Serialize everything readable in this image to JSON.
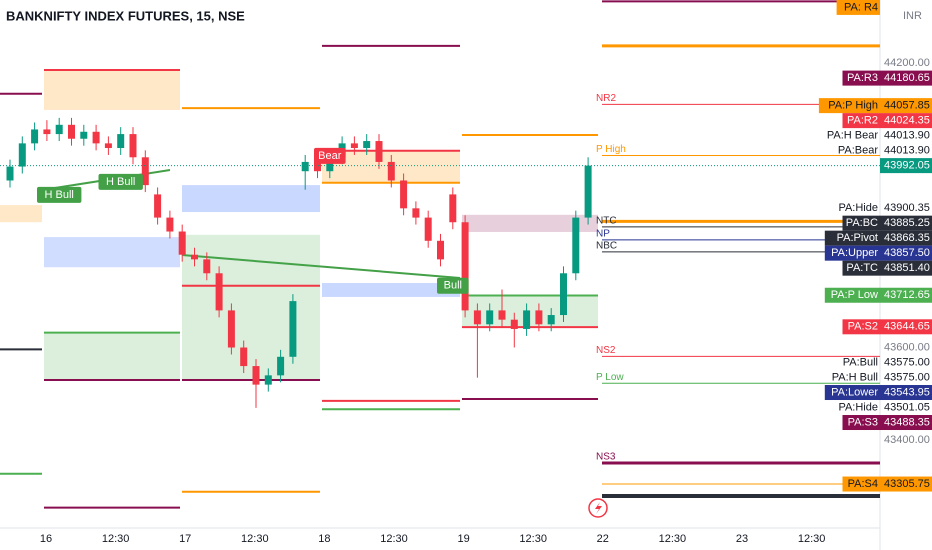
{
  "chart_data": {
    "type": "candlestick",
    "title": "BANKNIFTY INDEX FUTURES, 15, NSE",
    "currency": "INR",
    "ylim": [
      43211,
      44349
    ],
    "categories": [
      "16",
      "12:30",
      "17",
      "12:30",
      "18",
      "12:30",
      "19",
      "12:30",
      "22",
      "12:30",
      "23",
      "12:30"
    ],
    "up_color": "#089981",
    "down_color": "#f23645",
    "candles": [
      [
        43960,
        44005,
        43945,
        43990
      ],
      [
        43990,
        44055,
        43975,
        44040
      ],
      [
        44040,
        44085,
        44025,
        44070
      ],
      [
        44070,
        44090,
        44045,
        44060
      ],
      [
        44060,
        44095,
        44045,
        44080
      ],
      [
        44080,
        44095,
        44035,
        44050
      ],
      [
        44050,
        44080,
        44035,
        44065
      ],
      [
        44065,
        44080,
        44025,
        44040
      ],
      [
        44040,
        44055,
        44015,
        44030
      ],
      [
        44030,
        44075,
        44015,
        44060
      ],
      [
        44060,
        44075,
        43995,
        44010
      ],
      [
        44010,
        44025,
        43935,
        43950
      ],
      [
        43930,
        43945,
        43865,
        43880
      ],
      [
        43880,
        43895,
        43835,
        43850
      ],
      [
        43850,
        43865,
        43785,
        43800
      ],
      [
        43800,
        43815,
        43775,
        43790
      ],
      [
        43790,
        43805,
        43745,
        43760
      ],
      [
        43760,
        43775,
        43665,
        43680
      ],
      [
        43680,
        43695,
        43585,
        43600
      ],
      [
        43600,
        43615,
        43545,
        43560
      ],
      [
        43560,
        43575,
        43470,
        43520
      ],
      [
        43520,
        43555,
        43505,
        43540
      ],
      [
        43540,
        43595,
        43525,
        43580
      ],
      [
        43580,
        43715,
        43565,
        43700
      ],
      [
        43980,
        44015,
        43940,
        44000
      ],
      [
        44000,
        44015,
        43965,
        43980
      ],
      [
        43980,
        44025,
        43965,
        44010
      ],
      [
        44010,
        44055,
        43995,
        44040
      ],
      [
        44040,
        44055,
        44015,
        44030
      ],
      [
        44030,
        44060,
        44015,
        44045
      ],
      [
        44045,
        44060,
        43985,
        44000
      ],
      [
        44000,
        44015,
        43945,
        43960
      ],
      [
        43960,
        43975,
        43885,
        43900
      ],
      [
        43900,
        43915,
        43865,
        43880
      ],
      [
        43880,
        43895,
        43815,
        43830
      ],
      [
        43830,
        43845,
        43775,
        43790
      ],
      [
        43930,
        43945,
        43855,
        43870
      ],
      [
        43870,
        43885,
        43665,
        43680
      ],
      [
        43680,
        43695,
        43535,
        43650
      ],
      [
        43650,
        43695,
        43635,
        43680
      ],
      [
        43680,
        43725,
        43645,
        43660
      ],
      [
        43660,
        43675,
        43600,
        43640
      ],
      [
        43640,
        43695,
        43625,
        43680
      ],
      [
        43680,
        43695,
        43635,
        43650
      ],
      [
        43650,
        43685,
        43635,
        43670
      ],
      [
        43670,
        43775,
        43655,
        43760
      ],
      [
        43760,
        43895,
        43745,
        43880
      ],
      [
        43880,
        44010,
        43865,
        43992.05
      ]
    ],
    "bands": [
      {
        "day": 0,
        "top": 43907,
        "bottom": 43870,
        "color": "rgba(255,152,0,0.22)"
      },
      {
        "day": 1,
        "top": 44198,
        "bottom": 44112,
        "color": "rgba(255,152,0,0.22)"
      },
      {
        "day": 1,
        "top": 43838,
        "bottom": 43773,
        "color": "rgba(41,98,255,0.22)"
      },
      {
        "day": 1,
        "top": 43632,
        "bottom": 43530,
        "color": "rgba(76,175,80,0.2)"
      },
      {
        "day": 2,
        "top": 43950,
        "bottom": 43892,
        "color": "rgba(41,98,255,0.25)"
      },
      {
        "day": 2,
        "top": 43843,
        "bottom": 43530,
        "color": "rgba(76,175,80,0.2)"
      },
      {
        "day": 3,
        "top": 44024,
        "bottom": 43955,
        "color": "rgba(255,152,0,0.22)"
      },
      {
        "day": 3,
        "top": 43739,
        "bottom": 43709,
        "color": "rgba(41,98,255,0.25)"
      },
      {
        "day": 4,
        "top": 43886,
        "bottom": 43849,
        "color": "rgba(136,14,79,0.2)"
      },
      {
        "day": 4,
        "top": 43712,
        "bottom": 43645,
        "color": "rgba(76,175,80,0.2)"
      }
    ],
    "segments": [
      {
        "day": 0,
        "price": 44147,
        "color": "#880e4f"
      },
      {
        "day": 0,
        "price": 43596,
        "color": "#2a2e39"
      },
      {
        "day": 0,
        "price": 43328,
        "color": "#4caf50"
      },
      {
        "day": 1,
        "price": 44198,
        "color": "#f23645"
      },
      {
        "day": 1,
        "price": 43632,
        "color": "#4caf50"
      },
      {
        "day": 1,
        "price": 43530,
        "color": "#880e4f"
      },
      {
        "day": 1,
        "price": 43255,
        "color": "#880e4f"
      },
      {
        "day": 2,
        "price": 44116,
        "color": "#ff9800"
      },
      {
        "day": 2,
        "price": 43733,
        "color": "#f23645"
      },
      {
        "day": 2,
        "price": 43530,
        "color": "#880e4f"
      },
      {
        "day": 2,
        "price": 43289,
        "color": "#ff9800"
      },
      {
        "day": 3,
        "price": 44250,
        "color": "#880e4f"
      },
      {
        "day": 3,
        "price": 44024,
        "color": "#f23645"
      },
      {
        "day": 3,
        "price": 43955,
        "color": "#ff9800"
      },
      {
        "day": 3,
        "price": 43485,
        "color": "#f23645"
      },
      {
        "day": 3,
        "price": 43467,
        "color": "#4caf50"
      },
      {
        "day": 4,
        "price": 44058,
        "color": "#ff9800"
      },
      {
        "day": 4,
        "price": 43712,
        "color": "#4caf50"
      },
      {
        "day": 4,
        "price": 43644,
        "color": "#f23645"
      },
      {
        "day": 4,
        "price": 43489,
        "color": "#880e4f"
      }
    ],
    "levels": [
      {
        "price": 44346,
        "color": "#880e4f",
        "width": 2
      },
      {
        "price": 44250,
        "color": "#ff9800",
        "width": 3
      },
      {
        "price": 44124,
        "color": "#f23645",
        "width": 1,
        "label": "NR2"
      },
      {
        "price": 44013.9,
        "color": "#ff9800",
        "width": 1,
        "label": "P High"
      },
      {
        "price": 43872,
        "color": "#ff9800",
        "width": 3
      },
      {
        "price": 43860,
        "color": "#2a2e39",
        "width": 1,
        "label": "NTC"
      },
      {
        "price": 43832,
        "color": "#283593",
        "width": 1,
        "label": "NP"
      },
      {
        "price": 43806,
        "color": "#2a2e39",
        "width": 1,
        "label": "NBC"
      },
      {
        "price": 43581,
        "color": "#f23645",
        "width": 1,
        "label": "NS2"
      },
      {
        "price": 43523,
        "color": "#4caf50",
        "width": 1,
        "label": "P Low"
      },
      {
        "price": 43351,
        "color": "#880e4f",
        "width": 3,
        "label": "NS3"
      },
      {
        "price": 43305.75,
        "color": "#ff9800",
        "width": 1
      },
      {
        "price": 43280,
        "color": "#2a2e39",
        "width": 4
      }
    ],
    "annotations": [
      {
        "text": "H Bull",
        "candle": 4,
        "price": 43929,
        "color": "#43a047"
      },
      {
        "text": "H Bull",
        "candle": 9,
        "price": 43957,
        "color": "#43a047"
      },
      {
        "text": "Bear",
        "candle": 26,
        "price": 44013,
        "color": "#f23645"
      },
      {
        "text": "Bull",
        "candle": 36,
        "price": 43733,
        "color": "#43a047"
      }
    ],
    "tags": [
      {
        "name": "PA: R4",
        "price": 44333,
        "bg": "#ff9800",
        "fg": "#131722"
      },
      {
        "label": "44200.00",
        "price": 44200
      },
      {
        "name": "PA:R3",
        "label": "44180.65",
        "price": 44180.65,
        "bg": "#880e4f",
        "fg": "#ffffff"
      },
      {
        "name": "PA:P High",
        "label": "44057.85",
        "price": 44057.85,
        "bg": "#ff9800",
        "fg": "#131722"
      },
      {
        "name": "PA:R2",
        "label": "44024.35",
        "price": 44024.35,
        "bg": "#f23645",
        "fg": "#ffffff"
      },
      {
        "name": "PA:H Bear",
        "label": "44013.90",
        "price": 44013.9
      },
      {
        "name": "PA:Bear",
        "label": "44013.90",
        "price": 44013.9
      },
      {
        "label": "43992.05",
        "price": 43992.05,
        "bg": "#089981",
        "fg": "#ffffff",
        "current": true
      },
      {
        "name": "PA:Hide",
        "label": "43900.35",
        "price": 43900.35
      },
      {
        "name": "PA:BC",
        "label": "43885.25",
        "price": 43885.25,
        "bg": "#2a2e39",
        "fg": "#ffffff"
      },
      {
        "name": "PA:Pivot",
        "label": "43868.35",
        "price": 43868.35,
        "bg": "#2a2e39",
        "fg": "#ffffff"
      },
      {
        "name": "PA:Upper",
        "label": "43857.50",
        "price": 43857.5,
        "bg": "#283593",
        "fg": "#ffffff"
      },
      {
        "name": "PA:TC",
        "label": "43851.40",
        "price": 43851.4,
        "bg": "#2a2e39",
        "fg": "#ffffff"
      },
      {
        "name": "PA:P Low",
        "label": "43712.65",
        "price": 43712.65,
        "bg": "#4caf50",
        "fg": "#ffffff"
      },
      {
        "name": "PA:S2",
        "label": "43644.65",
        "price": 43644.65,
        "bg": "#f23645",
        "fg": "#ffffff"
      },
      {
        "label": "43600.00",
        "price": 43600
      },
      {
        "name": "PA:Bull",
        "label": "43575.00",
        "price": 43575
      },
      {
        "name": "PA:H Bull",
        "label": "43575.00",
        "price": 43575
      },
      {
        "name": "PA:Lower",
        "label": "43543.95",
        "price": 43543.95,
        "bg": "#283593",
        "fg": "#ffffff"
      },
      {
        "name": "PA:Hide",
        "label": "43501.05",
        "price": 43501.05
      },
      {
        "name": "PA:S3",
        "label": "43488.35",
        "price": 43488.35,
        "bg": "#880e4f",
        "fg": "#ffffff"
      },
      {
        "label": "43400.00",
        "price": 43400
      },
      {
        "name": "PA:S4",
        "label": "43305.75",
        "price": 43305.75,
        "bg": "#ff9800",
        "fg": "#131722"
      }
    ]
  }
}
